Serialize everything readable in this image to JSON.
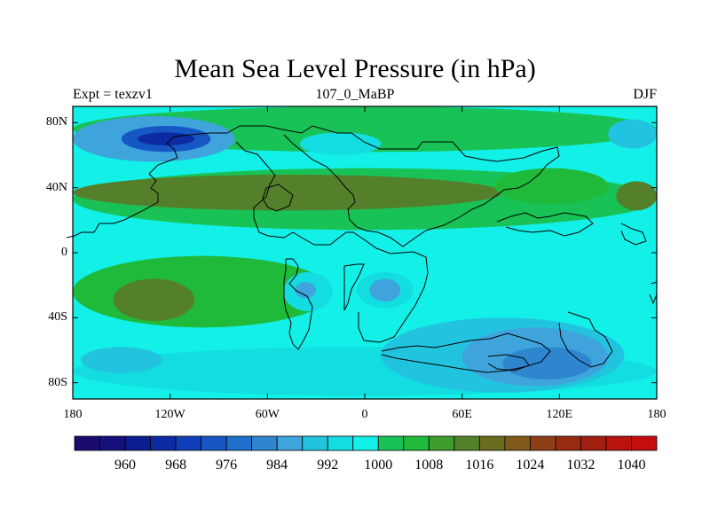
{
  "title": "Mean Sea Level Pressure (in hPa)",
  "subtitle_left": "Expt = texzv1",
  "subtitle_center": "107_0_MaBP",
  "subtitle_right": "DJF",
  "map": {
    "lon_range": [
      -180,
      180
    ],
    "lat_range": [
      -90,
      90
    ],
    "y_ticks": [
      {
        "lat": 80,
        "label": "80N"
      },
      {
        "lat": 40,
        "label": "40N"
      },
      {
        "lat": 0,
        "label": "0"
      },
      {
        "lat": -40,
        "label": "40S"
      },
      {
        "lat": -80,
        "label": "80S"
      }
    ],
    "x_ticks": [
      {
        "lon": -180,
        "label": "180"
      },
      {
        "lon": -120,
        "label": "120W"
      },
      {
        "lon": -60,
        "label": "60W"
      },
      {
        "lon": 0,
        "label": "0"
      },
      {
        "lon": 60,
        "label": "60E"
      },
      {
        "lon": 120,
        "label": "120E"
      },
      {
        "lon": 180,
        "label": "180"
      }
    ],
    "background_level": 1000,
    "regions": [
      {
        "name": "nh-high-lat-band",
        "level": 1004,
        "lon": [
          -180,
          180
        ],
        "lat": [
          62,
          90
        ]
      },
      {
        "name": "nh-mid-lat-band",
        "level": 1004,
        "lon": [
          -180,
          180
        ],
        "lat": [
          14,
          52
        ]
      },
      {
        "name": "nh-subtropical-ridge",
        "level": 1016,
        "lon": [
          -180,
          85
        ],
        "lat": [
          26,
          48
        ]
      },
      {
        "name": "central-asia-ridge",
        "level": 1008,
        "lon": [
          80,
          150
        ],
        "lat": [
          30,
          52
        ]
      },
      {
        "name": "nw-pacific-ridge",
        "level": 1016,
        "lon": [
          155,
          180
        ],
        "lat": [
          26,
          44
        ]
      },
      {
        "name": "north-pacific-low",
        "level": 988,
        "lon": [
          -180,
          -80
        ],
        "lat": [
          56,
          84
        ]
      },
      {
        "name": "north-pacific-low-core",
        "level": 976,
        "lon": [
          -150,
          -95
        ],
        "lat": [
          62,
          78
        ]
      },
      {
        "name": "north-pacific-low-inner",
        "level": 968,
        "lon": [
          -140,
          -105
        ],
        "lat": [
          66,
          74
        ]
      },
      {
        "name": "north-atlantic-low",
        "level": 996,
        "lon": [
          -40,
          10
        ],
        "lat": [
          60,
          74
        ]
      },
      {
        "name": "nw-pacific-low",
        "level": 992,
        "lon": [
          150,
          180
        ],
        "lat": [
          64,
          82
        ]
      },
      {
        "name": "sh-subtropical-high",
        "level": 1008,
        "lon": [
          -180,
          -20
        ],
        "lat": [
          -46,
          -2
        ]
      },
      {
        "name": "sh-subtropical-high-core",
        "level": 1016,
        "lon": [
          -155,
          -105
        ],
        "lat": [
          -42,
          -16
        ]
      },
      {
        "name": "eq-trough-west",
        "level": 996,
        "lon": [
          -50,
          -20
        ],
        "lat": [
          -36,
          -12
        ]
      },
      {
        "name": "eq-trough-west-core",
        "level": 988,
        "lon": [
          -43,
          -30
        ],
        "lat": [
          -28,
          -18
        ]
      },
      {
        "name": "eq-trough-east",
        "level": 996,
        "lon": [
          -5,
          30
        ],
        "lat": [
          -34,
          -12
        ]
      },
      {
        "name": "eq-trough-east-core",
        "level": 988,
        "lon": [
          3,
          22
        ],
        "lat": [
          -30,
          -16
        ]
      },
      {
        "name": "sh-circumpolar-trough",
        "level": 996,
        "lon": [
          -180,
          180
        ],
        "lat": [
          -88,
          -58
        ]
      },
      {
        "name": "south-pacific-low",
        "level": 992,
        "lon": [
          -175,
          -125
        ],
        "lat": [
          -74,
          -58
        ]
      },
      {
        "name": "south-indian-low",
        "level": 992,
        "lon": [
          10,
          160
        ],
        "lat": [
          -86,
          -40
        ]
      },
      {
        "name": "south-indian-low-core",
        "level": 988,
        "lon": [
          60,
          150
        ],
        "lat": [
          -82,
          -46
        ]
      },
      {
        "name": "south-indian-low-inner",
        "level": 984,
        "lon": [
          85,
          140
        ],
        "lat": [
          -78,
          -58
        ]
      }
    ]
  },
  "colorbar": {
    "levels": [
      956,
      960,
      964,
      968,
      972,
      976,
      980,
      984,
      988,
      992,
      996,
      1000,
      1004,
      1008,
      1012,
      1016,
      1020,
      1024,
      1028,
      1032,
      1036,
      1040,
      1044
    ],
    "colors": [
      "#1d0a6e",
      "#14117d",
      "#0a1d8f",
      "#0b2aa3",
      "#0f3fb8",
      "#1657c5",
      "#1f6fcc",
      "#2e86cf",
      "#3fa4dc",
      "#22c3de",
      "#13dde0",
      "#12f0e8",
      "#19c256",
      "#1fba3a",
      "#3f9d2b",
      "#54802b",
      "#6a6c20",
      "#805a1a",
      "#8e3f15",
      "#982a12",
      "#a11f10",
      "#b8130d",
      "#c40e0e"
    ],
    "labels": [
      {
        "value": 960,
        "label": "960"
      },
      {
        "value": 968,
        "label": "968"
      },
      {
        "value": 976,
        "label": "976"
      },
      {
        "value": 984,
        "label": "984"
      },
      {
        "value": 992,
        "label": "992"
      },
      {
        "value": 1000,
        "label": "1000"
      },
      {
        "value": 1008,
        "label": "1008"
      },
      {
        "value": 1016,
        "label": "1016"
      },
      {
        "value": 1024,
        "label": "1024"
      },
      {
        "value": 1032,
        "label": "1032"
      },
      {
        "value": 1040,
        "label": "1040"
      }
    ]
  }
}
